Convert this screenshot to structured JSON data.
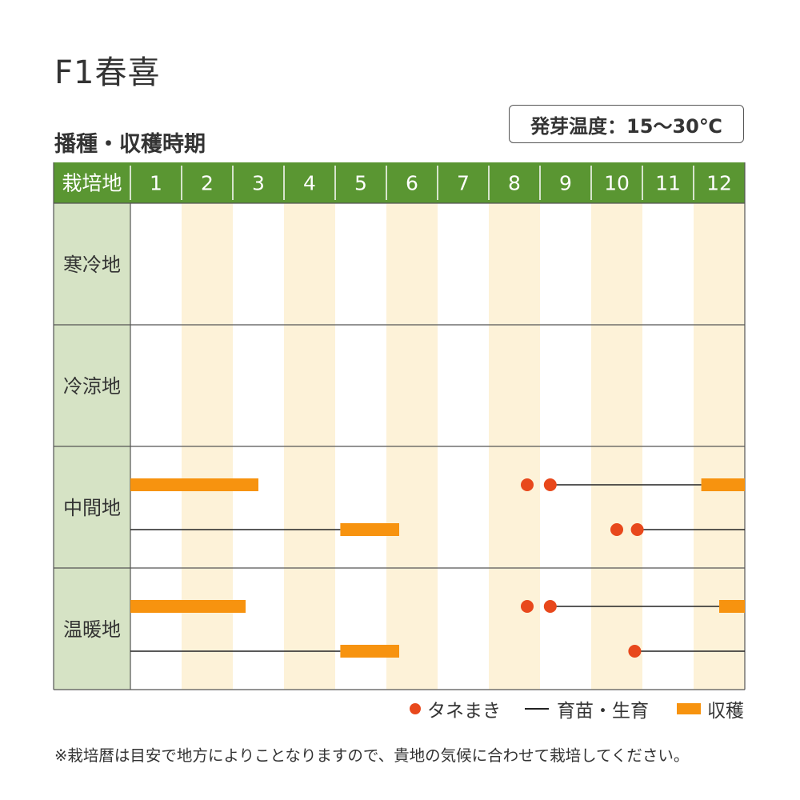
{
  "title": "F1春喜",
  "subtitle": "播種・収穫時期",
  "germination": "発芽温度：15〜30℃",
  "colors": {
    "header_green": "#5a9632",
    "region_bg": "#d6e3c5",
    "stripe": "#fdf2d8",
    "sowing": "#e8481c",
    "harvest": "#f7930f",
    "growing": "#222222"
  },
  "chart_data": {
    "type": "table",
    "corner_label": "栽培地",
    "months": [
      "1",
      "2",
      "3",
      "4",
      "5",
      "6",
      "7",
      "8",
      "9",
      "10",
      "11",
      "12"
    ],
    "regions": [
      {
        "name": "寒冷地",
        "lines": []
      },
      {
        "name": "冷涼地",
        "lines": []
      },
      {
        "name": "中間地",
        "lines": [
          {
            "sowing": [
              8.75,
              9.2
            ],
            "growing": [
              [
                9.2,
                12.15
              ]
            ],
            "harvest": [
              [
                1.0,
                3.5
              ],
              [
                12.15,
                13.0
              ]
            ]
          },
          {
            "sowing": [
              10.5,
              10.9
            ],
            "growing": [
              [
                1.0,
                5.1
              ],
              [
                10.9,
                13.0
              ]
            ],
            "harvest": [
              [
                5.1,
                6.25
              ]
            ]
          }
        ]
      },
      {
        "name": "温暖地",
        "lines": [
          {
            "sowing": [
              8.75,
              9.2
            ],
            "growing": [
              [
                9.2,
                12.5
              ]
            ],
            "harvest": [
              [
                1.0,
                3.25
              ],
              [
                12.5,
                13.0
              ]
            ]
          },
          {
            "sowing": [
              10.85
            ],
            "growing": [
              [
                1.0,
                5.1
              ],
              [
                10.85,
                13.0
              ]
            ],
            "harvest": [
              [
                5.1,
                6.25
              ]
            ]
          }
        ]
      }
    ]
  },
  "legend": {
    "sowing": "タネまき",
    "growing": "育苗・生育",
    "harvest": "収穫"
  },
  "note": "※栽培暦は目安で地方によりことなりますので、貴地の気候に合わせて栽培してください。"
}
